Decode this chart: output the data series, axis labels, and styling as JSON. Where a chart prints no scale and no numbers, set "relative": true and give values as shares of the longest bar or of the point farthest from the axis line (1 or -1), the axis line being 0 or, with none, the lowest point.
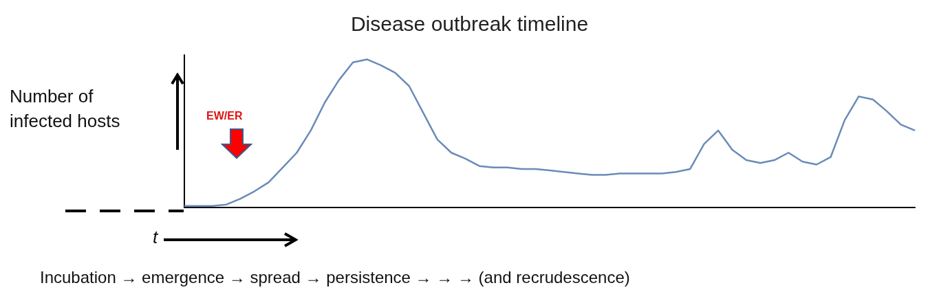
{
  "chart_data": {
    "type": "line",
    "title": "Disease outbreak timeline",
    "xlabel": "t",
    "ylabel": "Number of infected hosts",
    "annotations": [
      "EW/ER",
      "Incubation → emergence → spread → persistence → → → (and recrudescence)"
    ],
    "relative": true,
    "marker": "none",
    "color": "#6a8bb8",
    "categories": [
      null,
      null,
      null,
      null,
      null,
      null,
      null,
      null,
      null,
      null,
      null,
      null,
      null,
      null,
      null,
      null,
      null,
      null,
      null,
      null,
      null,
      null,
      null,
      null,
      null,
      null,
      null,
      null,
      null,
      null,
      null,
      null,
      null,
      null,
      null,
      null,
      null,
      null,
      null,
      null,
      null,
      null,
      null,
      null,
      null,
      null,
      null,
      null,
      null,
      null,
      null,
      null,
      null
    ],
    "values": [
      0.01,
      0.01,
      0.01,
      0.02,
      0.06,
      0.11,
      0.17,
      0.27,
      0.37,
      0.52,
      0.71,
      0.86,
      0.98,
      1,
      0.96,
      0.91,
      0.82,
      0.64,
      0.46,
      0.37,
      0.33,
      0.28,
      0.27,
      0.27,
      0.26,
      0.26,
      0.25,
      0.24,
      0.23,
      0.22,
      0.22,
      0.23,
      0.23,
      0.23,
      0.23,
      0.24,
      0.26,
      0.43,
      0.52,
      0.39,
      0.32,
      0.3,
      0.32,
      0.37,
      0.31,
      0.29,
      0.34,
      0.59,
      0.75,
      0.73,
      0.65,
      0.56,
      0.52
    ]
  }
}
